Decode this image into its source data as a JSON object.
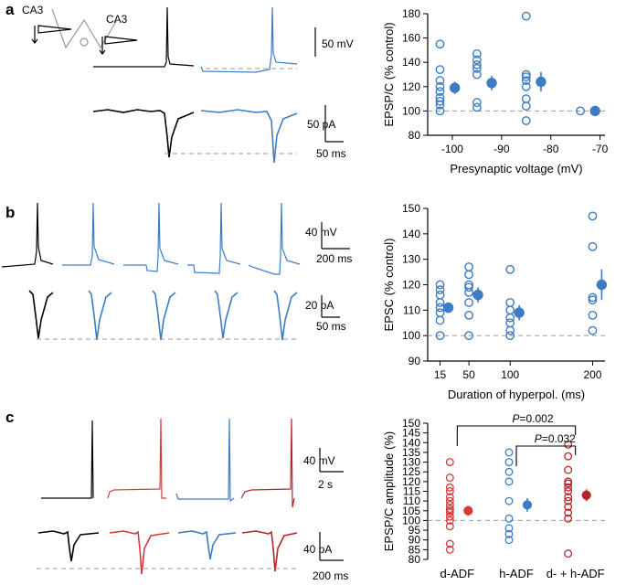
{
  "panels": {
    "a": {
      "label": "a",
      "ca3_left": "CA3",
      "ca3_right": "CA3",
      "scale_mv": "50 mV",
      "scale_pa": "50 pA",
      "scale_ms": "50 ms"
    },
    "b": {
      "label": "b",
      "scale_mv": "40 mV",
      "scale_ms_top": "200 ms",
      "scale_pa": "20 pA",
      "scale_ms_bottom": "50 ms"
    },
    "c": {
      "label": "c",
      "scale_mv": "40 mV",
      "scale_s": "2 s",
      "scale_pa": "40 pA",
      "scale_ms": "200 ms"
    }
  },
  "colors": {
    "black": "#000000",
    "blue": "#3d7cc4",
    "red": "#d73a3a",
    "darkred": "#b2262a",
    "grey": "#999999"
  },
  "chart_data": [
    {
      "id": "a",
      "type": "scatter",
      "xlabel": "Presynaptic voltage (mV)",
      "ylabel": "EPSP/C (% control)",
      "xlim": [
        -105,
        -69
      ],
      "ylim": [
        80,
        180
      ],
      "baseline": 100,
      "xticks": [
        -100,
        -90,
        -80,
        -70
      ],
      "yticks": [
        80,
        100,
        120,
        140,
        160,
        180
      ],
      "groups": [
        {
          "x": -102.5,
          "points": [
            100,
            105,
            108,
            111,
            116,
            120,
            125,
            134,
            155
          ],
          "mean_x": -99.5,
          "mean": 119,
          "err": 5
        },
        {
          "x": -95,
          "points": [
            103,
            107,
            130,
            135,
            138,
            142,
            147
          ],
          "mean_x": -92,
          "mean": 123,
          "err": 6
        },
        {
          "x": -85,
          "points": [
            92,
            104,
            110,
            120,
            125,
            128,
            130,
            178
          ],
          "mean_x": -82,
          "mean": 124,
          "err": 8
        },
        {
          "x": -74,
          "points": [
            100
          ],
          "mean_x": -71,
          "mean": 100,
          "err": 2
        }
      ]
    },
    {
      "id": "b",
      "type": "scatter",
      "xlabel": "Duration of hyperpol. (ms)",
      "ylabel": "EPSC (% control)",
      "xlim": [
        0,
        215
      ],
      "ylim": [
        90,
        150
      ],
      "baseline": 100,
      "xticks": [
        15,
        50,
        100,
        200
      ],
      "yticks": [
        90,
        100,
        110,
        120,
        130,
        140,
        150
      ],
      "groups": [
        {
          "x": 15,
          "points": [
            100,
            106,
            109,
            111,
            113,
            116,
            118,
            120
          ],
          "mean_x": 25,
          "mean": 111,
          "err": 2
        },
        {
          "x": 50,
          "points": [
            100,
            108,
            113,
            117,
            119,
            120,
            124,
            127
          ],
          "mean_x": 61,
          "mean": 116,
          "err": 3
        },
        {
          "x": 100,
          "points": [
            100,
            102,
            105,
            107,
            110,
            113,
            126
          ],
          "mean_x": 111,
          "mean": 109,
          "err": 3
        },
        {
          "x": 200,
          "points": [
            102,
            108,
            114,
            115,
            135,
            147
          ],
          "mean_x": 211,
          "mean": 120,
          "err": 6
        }
      ]
    },
    {
      "id": "c",
      "type": "scatter",
      "ylabel": "EPSP/C amplitude (%)",
      "ylim": [
        80,
        150
      ],
      "baseline": 100,
      "yticks": [
        80,
        85,
        90,
        95,
        100,
        105,
        110,
        115,
        120,
        125,
        130,
        135,
        140,
        145,
        150
      ],
      "categories": [
        "d-ADF",
        "h-ADF",
        "d- + h-ADF"
      ],
      "category_colors": [
        "#d73a3a",
        "#3d7cc4",
        "#b2262a"
      ],
      "groups": [
        {
          "points": [
            85,
            88,
            97,
            100,
            102,
            104,
            105,
            106,
            108,
            110,
            112,
            115,
            117,
            122,
            130
          ],
          "mean": 105,
          "err": 2.5
        },
        {
          "points": [
            90,
            93,
            96,
            101,
            110,
            120,
            125,
            130,
            135
          ],
          "mean": 108,
          "err": 3.5
        },
        {
          "points": [
            83,
            101,
            104,
            107,
            110,
            112,
            115,
            117,
            119,
            120,
            126,
            133,
            139
          ],
          "mean": 113,
          "err": 3
        }
      ],
      "annotations": [
        {
          "text": "P=0.002",
          "from": 0,
          "to": 2
        },
        {
          "text": "P=0.032",
          "from": 1,
          "to": 2
        }
      ]
    }
  ]
}
